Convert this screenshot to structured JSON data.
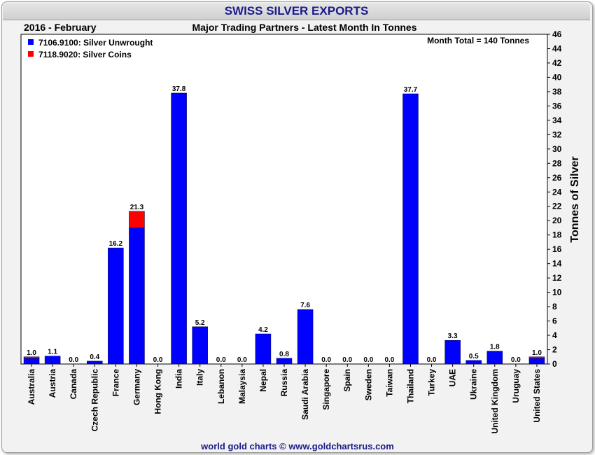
{
  "header": {
    "title": "SWISS SILVER EXPORTS",
    "period": "2016 - February",
    "subtitle": "Major Trading Partners - Latest Month In Tonnes"
  },
  "footer": "world gold charts © www.goldchartsrus.com",
  "month_total": "Month Total = 140 Tonnes",
  "chart_data": {
    "type": "bar",
    "stacked": true,
    "title": "SWISS SILVER EXPORTS",
    "ylabel": "Tonnes of Silver",
    "ylim": [
      0,
      46
    ],
    "ytick_step": 2,
    "yaxis_side": "right",
    "grid": false,
    "legend_placement": "top-left",
    "categories": [
      "Australia",
      "Austria",
      "Canada",
      "Czech Republic",
      "France",
      "Germany",
      "Hong Kong",
      "India",
      "Italy",
      "Lebanon",
      "Malaysia",
      "Nepal",
      "Russia",
      "Saudi Arabia",
      "Singapore",
      "Spain",
      "Sweden",
      "Taiwan",
      "Thailand",
      "Turkey",
      "UAE",
      "Ukraine",
      "United Kingdom",
      "Uruguay",
      "United States"
    ],
    "series": [
      {
        "name": "7106.9100: Silver Unwrought",
        "color": "#0000ff",
        "values": [
          0.8,
          1.1,
          0.0,
          0.4,
          16.2,
          19.0,
          0.0,
          37.8,
          5.2,
          0.0,
          0.0,
          4.2,
          0.8,
          7.6,
          0.0,
          0.0,
          0.0,
          0.0,
          37.7,
          0.0,
          3.3,
          0.5,
          1.8,
          0.0,
          0.8
        ]
      },
      {
        "name": "7118.9020: Silver Coins",
        "color": "#ff0000",
        "values": [
          0.2,
          0.0,
          0.0,
          0.0,
          0.0,
          2.3,
          0.0,
          0.0,
          0.0,
          0.0,
          0.0,
          0.0,
          0.0,
          0.0,
          0.0,
          0.0,
          0.0,
          0.0,
          0.0,
          0.0,
          0.0,
          0.0,
          0.0,
          0.0,
          0.2
        ]
      }
    ],
    "totals": [
      "1.0",
      "1.1",
      "0.0",
      "0.4",
      "16.2",
      "21.3",
      "0.0",
      "37.8",
      "5.2",
      "0.0",
      "0.0",
      "4.2",
      "0.8",
      "7.6",
      "0.0",
      "0.0",
      "0.0",
      "0.0",
      "37.7",
      "0.0",
      "3.3",
      "0.5",
      "1.8",
      "0.0",
      "1.0"
    ]
  }
}
